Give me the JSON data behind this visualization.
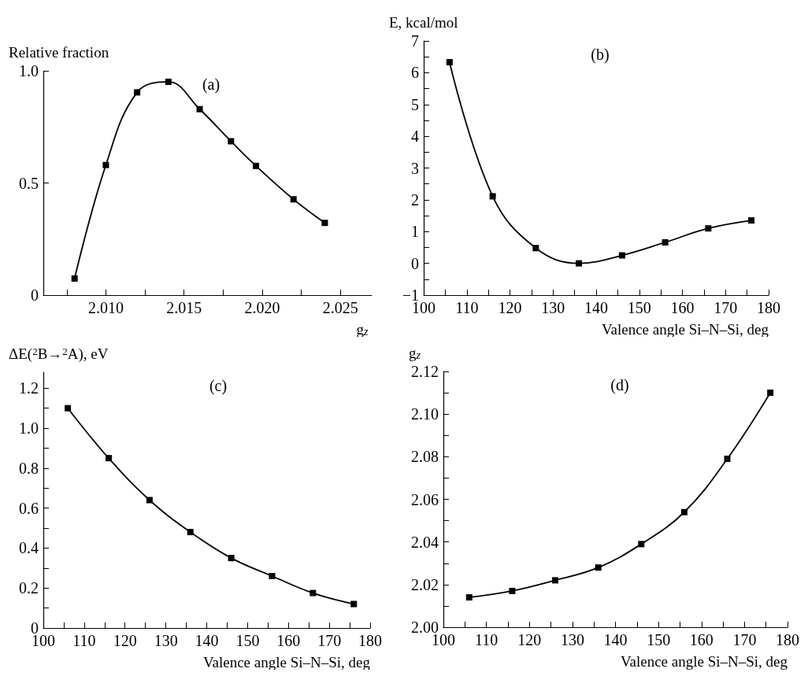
{
  "chart_data": [
    {
      "type": "line",
      "title": "(a)",
      "ylabel": "Relative fraction",
      "xlabel": "g$_{z}$",
      "marker": "square",
      "grid": false,
      "x": [
        2.008,
        2.01,
        2.012,
        2.014,
        2.016,
        2.018,
        2.0196,
        2.022,
        2.024
      ],
      "series": [
        {
          "color": "#000000",
          "values": [
            0.074,
            0.58,
            0.904,
            0.951,
            0.829,
            0.686,
            0.576,
            0.427,
            0.322
          ]
        }
      ],
      "xlim": [
        2.006,
        2.027
      ],
      "ylim": [
        0,
        1.0
      ],
      "xticks": [
        {
          "value": 2.0075,
          "label": null
        },
        {
          "value": 2.01,
          "label": "2.010"
        },
        {
          "value": 2.0125,
          "label": null
        },
        {
          "value": 2.015,
          "label": "2.015"
        },
        {
          "value": 2.0175,
          "label": null
        },
        {
          "value": 2.02,
          "label": "2.020"
        },
        {
          "value": 2.0225,
          "label": null
        },
        {
          "value": 2.025,
          "label": "2.025"
        }
      ],
      "yticks": [
        0,
        0.5,
        {
          "value": 1.0,
          "label": "1.0"
        }
      ]
    },
    {
      "type": "line",
      "title": "(b)",
      "ylabel": "E, kcal/mol",
      "xlabel": "Valence angle Si–N–Si, deg",
      "marker": "square",
      "grid": false,
      "x": [
        106,
        116,
        126,
        136,
        146,
        156,
        166,
        176
      ],
      "series": [
        {
          "color": "#000000",
          "values": [
            6.33,
            2.11,
            0.48,
            0.0,
            0.25,
            0.66,
            1.1,
            1.35
          ]
        }
      ],
      "xlim": [
        100,
        180
      ],
      "ylim": [
        -1,
        7
      ],
      "xticks": [
        100,
        {
          "value": 105,
          "label": null
        },
        110,
        {
          "value": 115,
          "label": null
        },
        120,
        {
          "value": 125,
          "label": null
        },
        130,
        {
          "value": 135,
          "label": null
        },
        140,
        {
          "value": 145,
          "label": null
        },
        150,
        {
          "value": 155,
          "label": null
        },
        160,
        {
          "value": 165,
          "label": null
        },
        170,
        {
          "value": 175,
          "label": null
        },
        180
      ],
      "yticks": [
        {
          "value": -1,
          "label": "−1"
        },
        {
          "value": -0.5,
          "label": null
        },
        0,
        {
          "value": 0.5,
          "label": null
        },
        1,
        {
          "value": 1.5,
          "label": null
        },
        2,
        {
          "value": 2.5,
          "label": null
        },
        3,
        {
          "value": 3.5,
          "label": null
        },
        4,
        {
          "value": 4.5,
          "label": null
        },
        5,
        {
          "value": 5.5,
          "label": null
        },
        6,
        {
          "value": 6.5,
          "label": null
        },
        7
      ]
    },
    {
      "type": "line",
      "title": "(c)",
      "ylabel": "ΔE($^{2}$B→$^{2}$A), eV",
      "xlabel": "Valence angle Si–N–Si, deg",
      "marker": "square",
      "grid": false,
      "x": [
        106,
        116,
        126,
        136,
        146,
        156,
        166,
        176
      ],
      "series": [
        {
          "color": "#000000",
          "values": [
            1.1,
            0.85,
            0.64,
            0.48,
            0.35,
            0.26,
            0.175,
            0.12
          ]
        }
      ],
      "xlim": [
        100,
        180
      ],
      "ylim": [
        0,
        1.28
      ],
      "xticks": [
        100,
        {
          "value": 105,
          "label": null
        },
        110,
        {
          "value": 115,
          "label": null
        },
        120,
        {
          "value": 125,
          "label": null
        },
        130,
        {
          "value": 135,
          "label": null
        },
        140,
        {
          "value": 145,
          "label": null
        },
        150,
        {
          "value": 155,
          "label": null
        },
        160,
        {
          "value": 165,
          "label": null
        },
        170,
        {
          "value": 175,
          "label": null
        },
        180
      ],
      "yticks": [
        0,
        {
          "value": 0.1,
          "label": null
        },
        0.2,
        {
          "value": 0.3,
          "label": null
        },
        0.4,
        {
          "value": 0.5,
          "label": null
        },
        0.6,
        {
          "value": 0.7,
          "label": null
        },
        0.8,
        {
          "value": 0.9,
          "label": null
        },
        {
          "value": 1.0,
          "label": "1.0"
        },
        {
          "value": 1.1,
          "label": null
        },
        1.2
      ]
    },
    {
      "type": "line",
      "title": "(d)",
      "ylabel": "g$_{z}$",
      "xlabel": "Valence angle Si–N–Si, deg",
      "marker": "square",
      "grid": false,
      "x": [
        106,
        116,
        126,
        136,
        146,
        156,
        166,
        176
      ],
      "series": [
        {
          "color": "#000000",
          "values": [
            2.014,
            2.017,
            2.022,
            2.028,
            2.039,
            2.054,
            2.079,
            2.11
          ]
        }
      ],
      "xlim": [
        100,
        180
      ],
      "ylim": [
        2.0,
        2.12
      ],
      "xticks": [
        100,
        {
          "value": 105,
          "label": null
        },
        110,
        {
          "value": 115,
          "label": null
        },
        120,
        {
          "value": 125,
          "label": null
        },
        130,
        {
          "value": 135,
          "label": null
        },
        140,
        {
          "value": 145,
          "label": null
        },
        150,
        {
          "value": 155,
          "label": null
        },
        160,
        {
          "value": 165,
          "label": null
        },
        170,
        {
          "value": 175,
          "label": null
        },
        180
      ],
      "yticks": [
        {
          "value": 2.0,
          "label": "2.00"
        },
        {
          "value": 2.01,
          "label": null
        },
        {
          "value": 2.02,
          "label": "2.02"
        },
        {
          "value": 2.03,
          "label": null
        },
        {
          "value": 2.04,
          "label": "2.04"
        },
        {
          "value": 2.05,
          "label": null
        },
        {
          "value": 2.06,
          "label": "2.06"
        },
        {
          "value": 2.07,
          "label": null
        },
        {
          "value": 2.08,
          "label": "2.08"
        },
        {
          "value": 2.09,
          "label": null
        },
        {
          "value": 2.1,
          "label": "2.10"
        },
        {
          "value": 2.11,
          "label": null
        },
        {
          "value": 2.12,
          "label": "2.12"
        }
      ]
    }
  ]
}
